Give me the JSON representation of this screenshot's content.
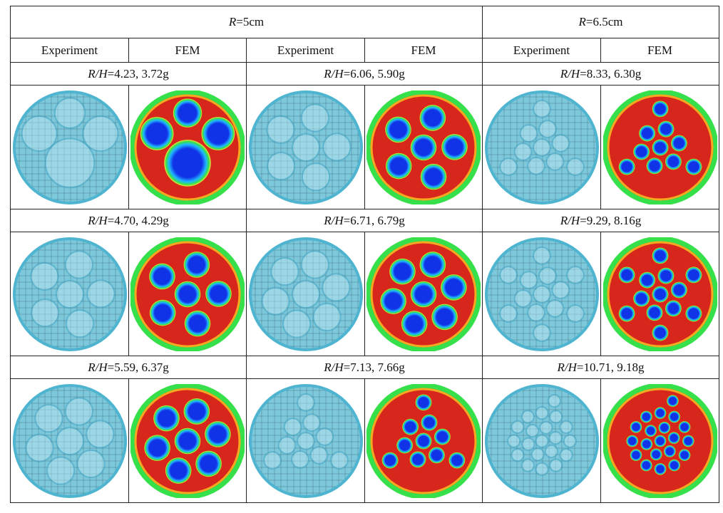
{
  "headers": {
    "group_left": {
      "symbol": "R",
      "value": "=5cm"
    },
    "group_right": {
      "symbol": "R",
      "value": "=6.5cm"
    },
    "col_experiment": "Experiment",
    "col_fem": "FEM"
  },
  "conditions": [
    [
      "4.23, 3.72g",
      "6.06,  5.90g",
      "8.33, 6.30g"
    ],
    [
      "4.70, 4.29g",
      "6.71, 6.79g",
      "9.29, 8.16g"
    ],
    [
      "5.59, 6.37g",
      "7.13, 7.66g",
      "10.71,  9.18g"
    ]
  ],
  "ratio_symbol": "R/H",
  "ratio_eq": "=",
  "colors": {
    "fem_background": "#d7261c",
    "fem_blue": "#1133e8",
    "fem_ring": "#36e04a",
    "experiment_tint": "#7ec8dc",
    "grid_line": "#1d3f4a"
  },
  "fem_cells": [
    [
      4,
      6,
      10
    ],
    [
      6,
      7,
      13
    ],
    [
      7,
      10,
      20
    ]
  ]
}
